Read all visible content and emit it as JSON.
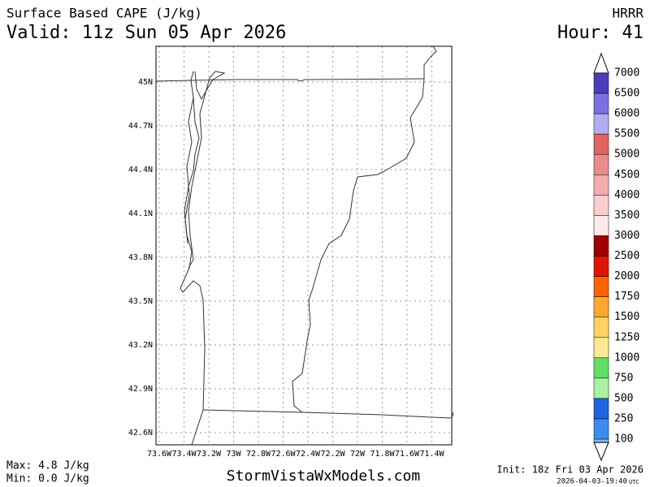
{
  "header": {
    "title": "Surface Based CAPE (J/kg)",
    "valid": "Valid: 11z Sun 05 Apr 2026",
    "model": "HRRR",
    "hour": "Hour: 41"
  },
  "map": {
    "lat_labels": [
      "45N",
      "44.7N",
      "44.4N",
      "44.1N",
      "43.8N",
      "43.5N",
      "43.2N",
      "42.9N",
      "42.6N"
    ],
    "lon_labels": [
      "73.6W",
      "73.4W",
      "73.2W",
      "73W",
      "72.8W",
      "72.6W",
      "72.4W",
      "72.2W",
      "72W",
      "71.8W",
      "71.6W",
      "71.4W"
    ]
  },
  "colorbar": {
    "labels": [
      "7000",
      "6500",
      "6000",
      "5500",
      "5000",
      "4500",
      "4000",
      "3500",
      "3000",
      "2500",
      "2000",
      "1750",
      "1500",
      "1250",
      "1000",
      "750",
      "500",
      "250",
      "100"
    ],
    "colors": [
      "#4a3cbc",
      "#7a70e0",
      "#b4acf2",
      "#e06464",
      "#ea8c8c",
      "#f4acac",
      "#fbcfcf",
      "#fde9e9",
      "#a00000",
      "#e01400",
      "#ff6400",
      "#ffa830",
      "#ffd264",
      "#ffe994",
      "#64e064",
      "#aaf2a4",
      "#2064e0",
      "#3c8cf0",
      "#80b8f8"
    ]
  },
  "footer": {
    "max": "Max: 4.8 J/kg",
    "min": "Min: 0.0 J/kg",
    "site": "StormVistaWxModels.com",
    "init": "Init: 18z Fri 03 Apr 2026",
    "timestamp": "2026-04-03-19:40",
    "timezone": "UTC"
  }
}
